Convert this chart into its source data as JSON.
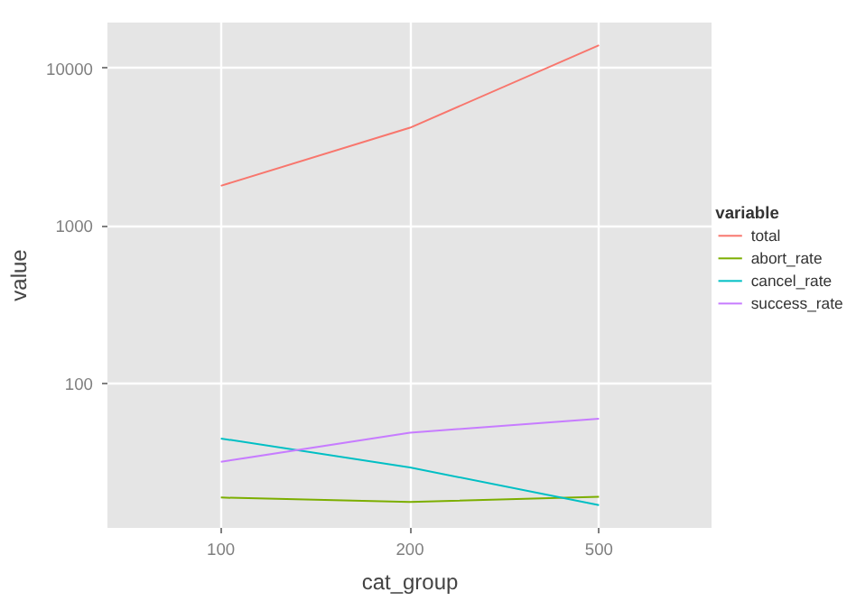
{
  "chart_data": {
    "type": "line",
    "xlabel": "cat_group",
    "ylabel": "value",
    "legend_title": "variable",
    "categories": [
      "100",
      "200",
      "500"
    ],
    "series": [
      {
        "name": "total",
        "color": "#f8766d",
        "values": [
          1800,
          4200,
          14000
        ]
      },
      {
        "name": "abort_rate",
        "color": "#7cae00",
        "values": [
          19,
          17.8,
          19.2
        ]
      },
      {
        "name": "cancel_rate",
        "color": "#00bfc4",
        "values": [
          45,
          29.5,
          17
        ]
      },
      {
        "name": "success_rate",
        "color": "#c77cff",
        "values": [
          32,
          49,
          60
        ]
      }
    ],
    "log": "y",
    "ylim": [
      12.2,
      19500
    ],
    "yticks": [
      100,
      1000,
      10000
    ],
    "grid": true,
    "legend": "right",
    "marker": "none",
    "line_style": "solid"
  }
}
